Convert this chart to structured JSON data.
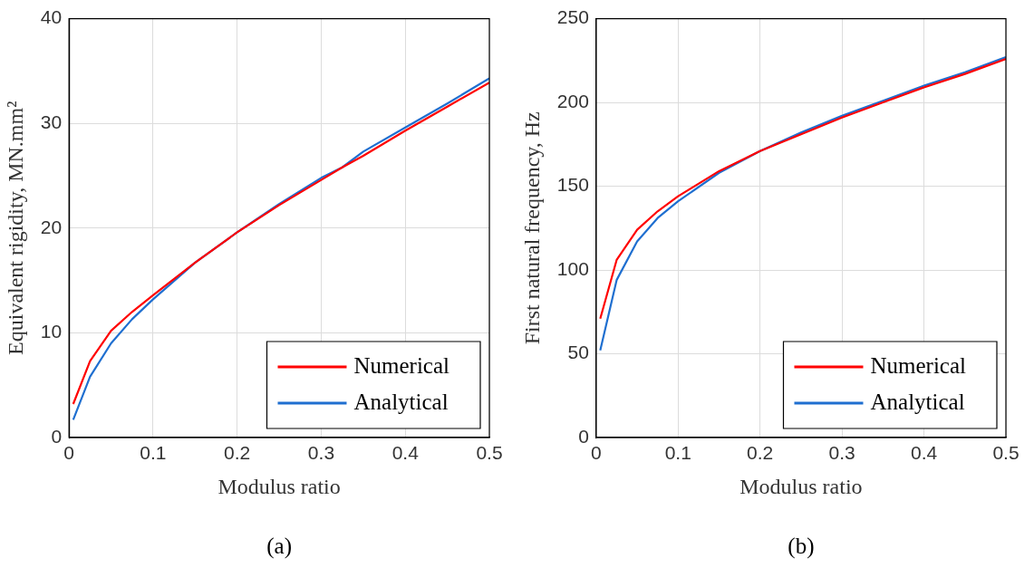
{
  "chart_data": [
    {
      "type": "line",
      "xlabel": "Modulus ratio",
      "ylabel": "Equivalent rigidity, MN.mm²",
      "x": [
        0.005,
        0.025,
        0.05,
        0.075,
        0.1,
        0.15,
        0.2,
        0.25,
        0.3,
        0.325,
        0.35,
        0.4,
        0.45,
        0.5
      ],
      "series": [
        {
          "name": "Numerical",
          "color": "#ff0000",
          "values": [
            3.2,
            7.3,
            10.2,
            12.0,
            13.6,
            16.7,
            19.6,
            22.2,
            24.6,
            25.8,
            26.9,
            29.3,
            31.6,
            33.9
          ]
        },
        {
          "name": "Analytical",
          "color": "#1f6fd0",
          "values": [
            1.7,
            5.8,
            9.0,
            11.3,
            13.2,
            16.7,
            19.6,
            22.3,
            24.8,
            25.8,
            27.3,
            29.6,
            31.9,
            34.3
          ]
        }
      ],
      "xlim": [
        0,
        0.5
      ],
      "xticks": [
        0,
        0.1,
        0.2,
        0.3,
        0.4,
        0.5
      ],
      "ylim": [
        0,
        40
      ],
      "yticks": [
        0,
        10,
        20,
        30,
        40
      ],
      "grid": true,
      "legend": "bottom right",
      "marker": "none",
      "line_style": "solid",
      "annotations": [
        "(a)"
      ]
    },
    {
      "type": "line",
      "xlabel": "Modulus ratio",
      "ylabel": "First natural frequency, Hz",
      "x": [
        0.005,
        0.025,
        0.05,
        0.075,
        0.1,
        0.15,
        0.2,
        0.25,
        0.3,
        0.35,
        0.4,
        0.45,
        0.5
      ],
      "series": [
        {
          "name": "Numerical",
          "color": "#ff0000",
          "values": [
            71,
            106,
            124,
            135,
            144,
            159,
            171,
            181,
            191,
            200,
            209,
            217,
            226
          ]
        },
        {
          "name": "Analytical",
          "color": "#1f6fd0",
          "values": [
            52,
            94,
            117,
            131,
            141,
            158,
            171,
            182,
            192,
            201,
            210,
            218,
            227
          ]
        }
      ],
      "xlim": [
        0,
        0.5
      ],
      "xticks": [
        0,
        0.1,
        0.2,
        0.3,
        0.4,
        0.5
      ],
      "ylim": [
        0,
        250
      ],
      "yticks": [
        0,
        50,
        100,
        150,
        200,
        250
      ],
      "grid": true,
      "legend": "bottom right",
      "marker": "none",
      "line_style": "solid",
      "annotations": [
        "(b)"
      ]
    }
  ]
}
